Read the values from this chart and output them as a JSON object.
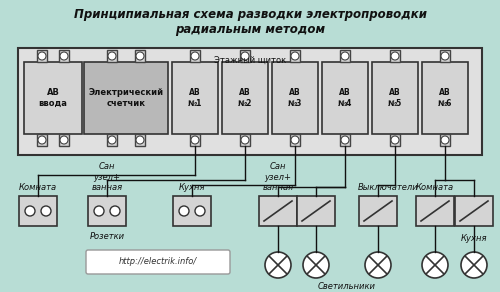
{
  "title": "Принципиальная схема разводки электропроводки\nрадиальным методом",
  "bg_color": "#b8ddd5",
  "panel_bg": "#e0e0e0",
  "panel_border": "#333333",
  "box_bg": "#d4d4d4",
  "meter_bg": "#b8b8b8",
  "url_text": "http://electrik.info/",
  "panel_label": "Этажный щиток",
  "ab_labels": [
    "АВ\nввода",
    "Электрический\nсчетчик",
    "АВ\n№1",
    "АВ\n№2",
    "АВ\n№3",
    "АВ\n№4",
    "АВ\n№5",
    "АВ\n№6"
  ],
  "socket_label": "Розетки",
  "lights_label": "Светильники",
  "lc": "#111111",
  "lw": 1.0
}
